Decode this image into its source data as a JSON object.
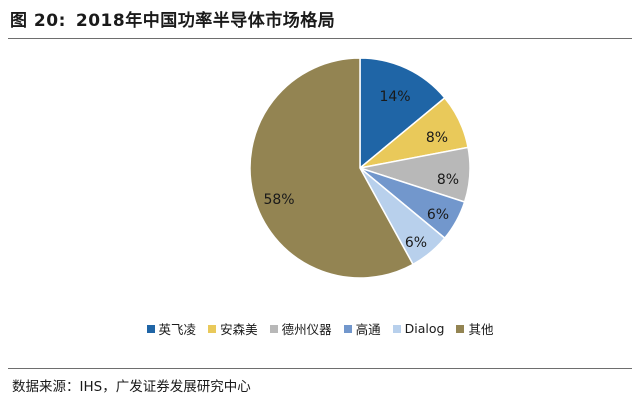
{
  "header": {
    "figure_label": "图 20:",
    "title": "2018年中国功率半导体市场格局"
  },
  "footer": {
    "source": "数据来源：IHS，广发证券发展研究中心"
  },
  "chart_data": {
    "type": "pie",
    "title": "2018年中国功率半导体市场格局",
    "start": "12 o'clock, clockwise",
    "legend_position": "bottom",
    "slices": [
      {
        "name": "英飞凌",
        "value": 14,
        "label": "14%",
        "color": "#1f65a6"
      },
      {
        "name": "安森美",
        "value": 8,
        "label": "8%",
        "color": "#e9c95a"
      },
      {
        "name": "德州仪器",
        "value": 8,
        "label": "8%",
        "color": "#b8b8b8"
      },
      {
        "name": "高通",
        "value": 6,
        "label": "6%",
        "color": "#7297cc"
      },
      {
        "name": "Dialog",
        "value": 6,
        "label": "6%",
        "color": "#b8d0ec"
      },
      {
        "name": "其他",
        "value": 58,
        "label": "58%",
        "color": "#938452"
      }
    ]
  }
}
